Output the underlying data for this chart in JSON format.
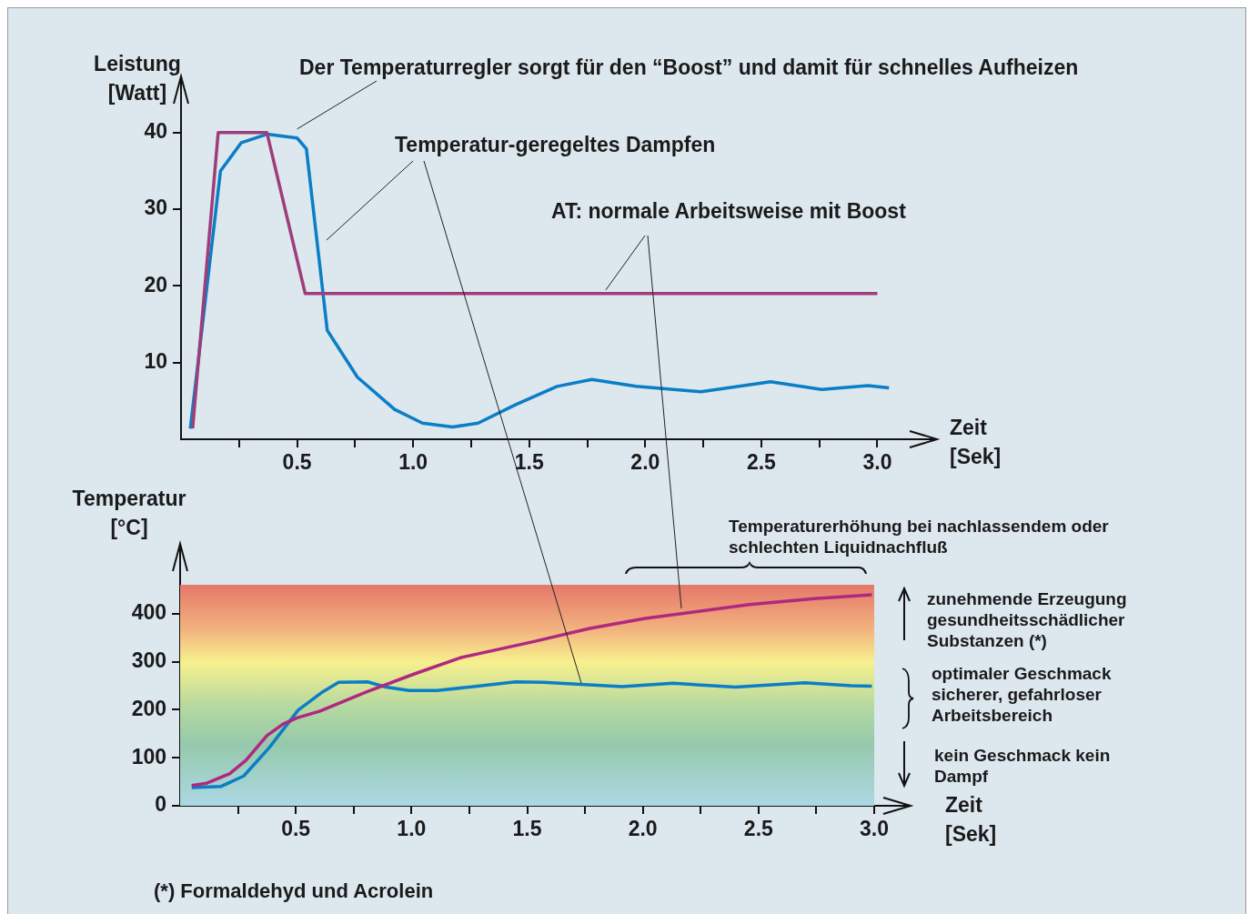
{
  "chart_data": [
    {
      "type": "line",
      "xlabel": "Zeit [Sek]",
      "ylabel": "Leistung [Watt]",
      "marker": "none",
      "annotations": [
        {
          "text": "Der Temperaturregler sorgt für den “Boost” und damit für schnelles Aufheizen",
          "x": 0.5,
          "y": 40
        },
        "Temperatur-geregeltes Dampfen",
        {
          "text": "AT: normale Arbeitsweise mit Boost",
          "x": 1.83,
          "y": 19
        }
      ],
      "xlim": [
        0,
        3.1
      ],
      "xticks": [
        {
          "value": 0.25,
          "label": null
        },
        0.5,
        {
          "value": 0.75,
          "label": null
        },
        {
          "value": 1,
          "label": "1.0"
        },
        {
          "value": 1.25,
          "label": null
        },
        1.5,
        {
          "value": 1.75,
          "label": null
        },
        {
          "value": 2,
          "label": "2.0"
        },
        {
          "value": 2.25,
          "label": null
        },
        2.5,
        {
          "value": 2.75,
          "label": null
        },
        {
          "value": 3,
          "label": "3.0"
        }
      ],
      "ylim": [
        0,
        42
      ],
      "yticks": [
        10,
        20,
        30,
        40
      ],
      "series": [
        {
          "color": "#9e3d7a",
          "x": [
            0.05,
            0.16,
            0.37,
            0.535,
            3.0
          ],
          "values": [
            1.4,
            40,
            40,
            19,
            19
          ]
        },
        {
          "color": "#0a7ec6",
          "x": [
            0.04,
            0.17,
            0.26,
            0.37,
            0.5,
            0.54,
            0.63,
            0.76,
            0.92,
            1.04,
            1.17,
            1.28,
            1.44,
            1.62,
            1.77,
            1.96,
            2.24,
            2.54,
            2.76,
            2.96,
            3.05
          ],
          "values": [
            1.4,
            35,
            38.7,
            39.8,
            39.3,
            37.9,
            14.2,
            8.1,
            3.9,
            2.1,
            1.6,
            2.1,
            4.5,
            6.9,
            7.8,
            6.9,
            6.2,
            7.5,
            6.5,
            7.0,
            6.7
          ]
        }
      ]
    },
    {
      "type": "line",
      "xlabel": "Zeit [Sek]",
      "ylabel": "Temperatur [°C]",
      "marker": "none",
      "annotations": [
        "Temperaturerhöhung bei nachlassendem oder schlechten Liquidnachfluß",
        "zunehmende Erzeugung gesundheitsschädlicher Substanzen (*)",
        "optimaler Geschmack sicherer, gefahrloser Arbeitsbereich",
        "kein Geschmack kein Dampf",
        "(*) Formaldehyd und Acrolein"
      ],
      "xlim": [
        0,
        3.0
      ],
      "xticks": [
        {
          "value": 0.25,
          "label": null
        },
        0.5,
        {
          "value": 0.75,
          "label": null
        },
        {
          "value": 1,
          "label": "1.0"
        },
        {
          "value": 1.25,
          "label": null
        },
        1.5,
        {
          "value": 1.75,
          "label": null
        },
        {
          "value": 2,
          "label": "2.0"
        },
        {
          "value": 2.25,
          "label": null
        },
        2.5,
        {
          "value": 2.75,
          "label": null
        },
        {
          "value": 3,
          "label": "3.0"
        }
      ],
      "ylim": [
        0,
        460
      ],
      "yticks": [
        0,
        100,
        200,
        300,
        400
      ],
      "series": [
        {
          "color": "#b0287f",
          "x": [
            0.05,
            0.115,
            0.215,
            0.285,
            0.375,
            0.445,
            0.505,
            0.605,
            0.81,
            1.01,
            1.21,
            1.53,
            1.77,
            2.01,
            2.46,
            2.74,
            2.99
          ],
          "values": [
            42,
            47,
            67,
            95,
            146,
            170,
            183,
            197,
            238,
            274,
            308,
            342,
            369,
            390,
            419,
            431,
            439
          ]
        },
        {
          "color": "#0a7ec6",
          "x": [
            0.05,
            0.175,
            0.275,
            0.385,
            0.51,
            0.61,
            0.685,
            0.81,
            0.89,
            0.99,
            1.11,
            1.25,
            1.45,
            1.57,
            1.91,
            2.13,
            2.4,
            2.7,
            2.9,
            2.99
          ],
          "values": [
            38,
            40,
            62,
            121,
            199,
            235,
            257,
            258,
            247,
            240,
            240,
            247,
            258,
            257,
            248,
            255,
            247,
            256,
            250,
            249
          ]
        }
      ]
    }
  ]
}
